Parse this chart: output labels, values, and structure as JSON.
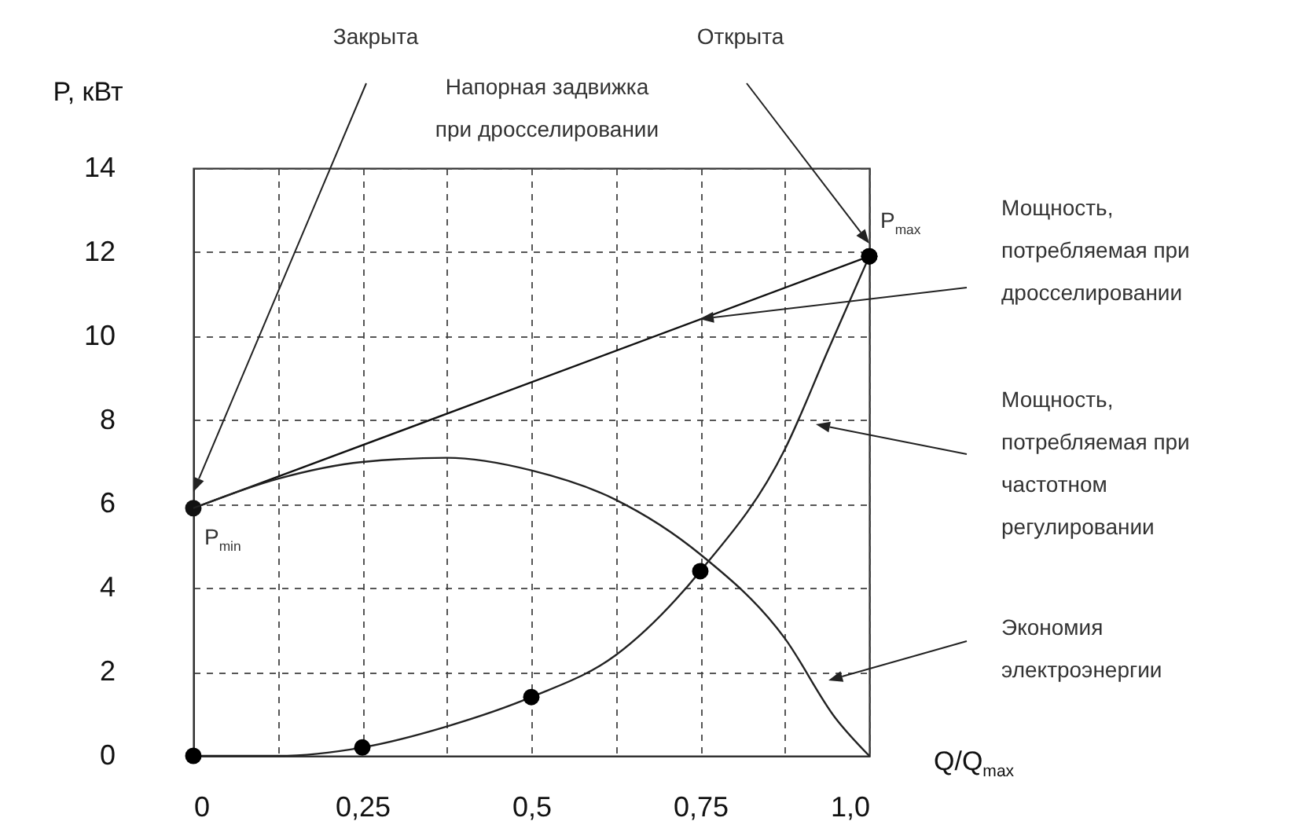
{
  "chart_data": {
    "type": "line",
    "ylabel": "P, кВт",
    "xlabel": "Q/Q$_{max}$",
    "xlim": [
      0,
      1
    ],
    "ylim": [
      0,
      14
    ],
    "xticks": [
      0,
      {
        "value": 0.125,
        "label": null
      },
      {
        "value": 0.25,
        "label": "0,25"
      },
      {
        "value": 0.375,
        "label": null
      },
      {
        "value": 0.5,
        "label": "0,5"
      },
      {
        "value": 0.625,
        "label": null
      },
      {
        "value": 0.75,
        "label": "0,75"
      },
      {
        "value": 0.875,
        "label": null
      },
      {
        "value": 1,
        "label": "1,0"
      }
    ],
    "yticks": [
      0,
      2,
      4,
      6,
      8,
      10,
      12,
      14
    ],
    "grid": true,
    "series": [
      {
        "color": "#111111",
        "marker": "circle",
        "x": [
          0,
          1
        ],
        "values": [
          5.9,
          11.9
        ]
      },
      {
        "color": "#222222",
        "x": [
          0,
          0.125,
          0.25,
          0.375,
          0.5,
          0.625,
          0.75,
          0.875,
          0.94,
          1
        ],
        "values": [
          0,
          0,
          0.2,
          0.7,
          1.4,
          2.4,
          4.4,
          7.3,
          9.7,
          11.9
        ]
      },
      {
        "type": "scatter",
        "color": "#000000",
        "marker": "circle",
        "x": [
          0,
          0.25,
          0.5,
          0.75,
          1
        ],
        "values": [
          0,
          0.2,
          1.4,
          4.4,
          11.9
        ]
      },
      {
        "color": "#222222",
        "x": [
          0,
          0.125,
          0.25,
          0.375,
          0.5,
          0.625,
          0.75,
          0.875,
          0.95,
          1
        ],
        "values": [
          5.9,
          6.6,
          7.0,
          7.1,
          6.8,
          6.1,
          4.8,
          2.8,
          0.9,
          0
        ]
      }
    ],
    "annotations": [
      "Закрыта",
      "Открыта",
      "Напорная задвижка при дросселировании",
      {
        "text": "P$_{max}$",
        "x": 1,
        "y": 11.9
      },
      {
        "text": "P$_{min}$",
        "x": 0,
        "y": 5.9
      },
      "Мощность, потребляемая при дросселировании",
      "Мощность, потребляемая при частотном регулировании",
      "Экономия электроэнергии"
    ]
  }
}
